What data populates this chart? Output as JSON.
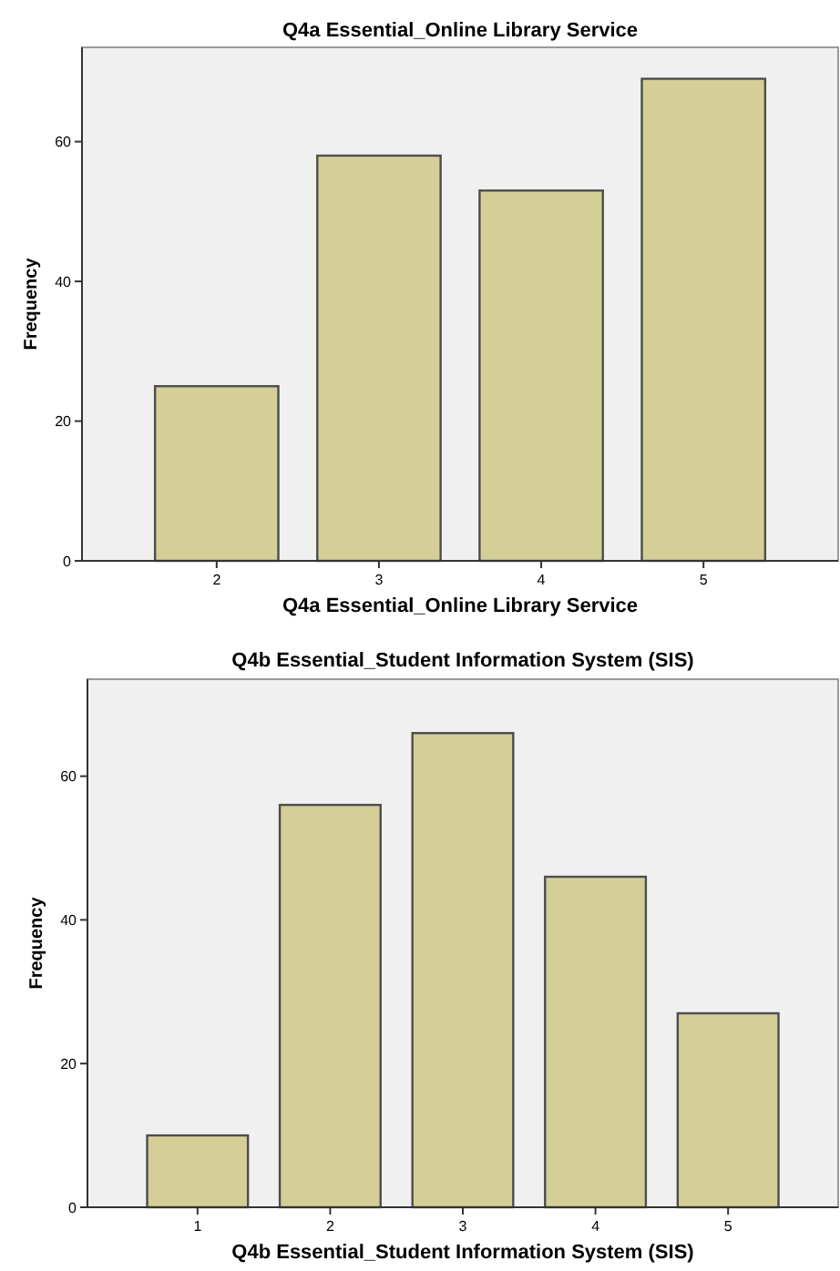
{
  "chart_data": [
    {
      "type": "bar",
      "title": "Q4a Essential_Online Library Service",
      "xlabel": "Q4a Essential_Online Library Service",
      "ylabel": "Frequency",
      "categories": [
        "2",
        "3",
        "4",
        "5"
      ],
      "values": [
        25,
        58,
        53,
        69
      ],
      "color": "#d3cf96",
      "ylim": [
        0,
        73.5
      ],
      "yticks": [
        0,
        20,
        40,
        60
      ],
      "grid": false
    },
    {
      "type": "bar",
      "title": "Q4b Essential_Student Information System (SIS)",
      "xlabel": "Q4b Essential_Student Information System (SIS)",
      "ylabel": "Frequency",
      "categories": [
        "1",
        "2",
        "3",
        "4",
        "5"
      ],
      "values": [
        10,
        56,
        66,
        46,
        27
      ],
      "color": "#d3cf96",
      "ylim": [
        0,
        73.5
      ],
      "yticks": [
        0,
        20,
        40,
        60
      ],
      "grid": false
    }
  ]
}
